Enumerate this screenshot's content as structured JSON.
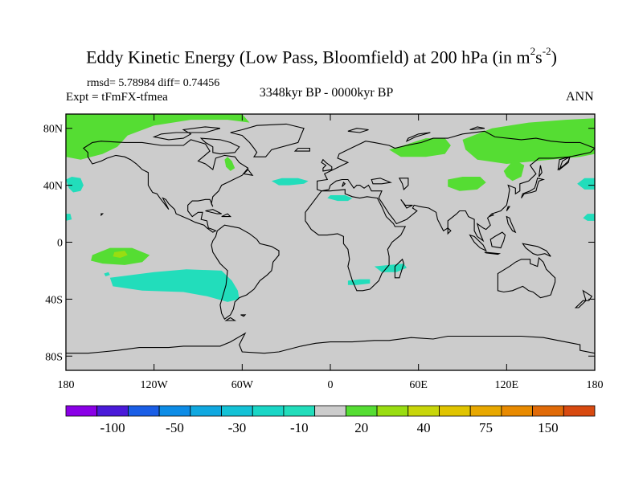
{
  "header": {
    "title_main": "Eddy Kinetic Energy (Low Pass, Bloomfield) at 200 hPa (in m",
    "title_sup1": "2",
    "title_mid": "s",
    "title_sup2": "-2",
    "title_end": ")",
    "stats": "rmsd= 5.78984 diff= 0.74456",
    "expt": "Expt = tFmFX-tfmea",
    "period": "3348kyr BP - 0000kyr BP",
    "season": "ANN"
  },
  "colors": {
    "land_fill": "#cccccc",
    "coastline": "#000000",
    "pos_low": "#55dd33",
    "pos_mid": "#99dd11",
    "neg_low": "#22ddbb"
  },
  "chart_data": {
    "type": "heatmap",
    "title": "Eddy Kinetic Energy (Low Pass, Bloomfield) at 200 hPa (in m2s-2)",
    "subtitle": "3348kyr BP - 0000kyr BP",
    "x_range": [
      -180,
      180
    ],
    "y_range": [
      -90,
      90
    ],
    "x_ticks": [
      {
        "value": -180,
        "label": "180"
      },
      {
        "value": -120,
        "label": "120W"
      },
      {
        "value": -60,
        "label": "60W"
      },
      {
        "value": 0,
        "label": "0"
      },
      {
        "value": 60,
        "label": "60E"
      },
      {
        "value": 120,
        "label": "120E"
      },
      {
        "value": 180,
        "label": "180"
      }
    ],
    "y_ticks": [
      {
        "value": 80,
        "label": "80N"
      },
      {
        "value": 40,
        "label": "40N"
      },
      {
        "value": 0,
        "label": "0"
      },
      {
        "value": -40,
        "label": "40S"
      },
      {
        "value": -80,
        "label": "80S"
      }
    ],
    "colorbar": {
      "colors": [
        "#8a00e6",
        "#4a1ad9",
        "#1a5ee6",
        "#0d8ce6",
        "#10a8e0",
        "#14c2d6",
        "#1ad6c6",
        "#22ddbb",
        "#cccccc",
        "#55dd33",
        "#99dd11",
        "#c8d60a",
        "#e0c400",
        "#e8a800",
        "#e88a00",
        "#e06a08",
        "#d84a10"
      ],
      "labels": [
        {
          "boundary": 1.5,
          "label": "-100"
        },
        {
          "boundary": 3.5,
          "label": "-50"
        },
        {
          "boundary": 5.5,
          "label": "-30"
        },
        {
          "boundary": 7.5,
          "label": "-10"
        },
        {
          "boundary": 9.5,
          "label": "20"
        },
        {
          "boundary": 11.5,
          "label": "40"
        },
        {
          "boundary": 13.5,
          "label": "75"
        },
        {
          "boundary": 15.5,
          "label": "150"
        }
      ]
    },
    "regions": [
      {
        "name": "arctic-north-america",
        "level": "pos_low",
        "polygon": [
          [
            -180,
            90
          ],
          [
            -180,
            60
          ],
          [
            -170,
            58
          ],
          [
            -155,
            62
          ],
          [
            -145,
            67
          ],
          [
            -138,
            75
          ],
          [
            -120,
            82
          ],
          [
            -95,
            86
          ],
          [
            -70,
            86
          ],
          [
            -55,
            84
          ],
          [
            -60,
            90
          ]
        ]
      },
      {
        "name": "hudson-bay-patch",
        "level": "pos_low",
        "polygon": [
          [
            -70,
            60
          ],
          [
            -67,
            57
          ],
          [
            -65,
            52
          ],
          [
            -68,
            50
          ],
          [
            -71,
            53
          ],
          [
            -72,
            58
          ]
        ]
      },
      {
        "name": "north-atlantic-west",
        "level": "neg_low",
        "polygon": [
          [
            -180,
            44
          ],
          [
            -178,
            38
          ],
          [
            -175,
            35
          ],
          [
            -170,
            36
          ],
          [
            -168,
            40
          ],
          [
            -170,
            45
          ],
          [
            -176,
            46
          ]
        ]
      },
      {
        "name": "north-atlantic-east",
        "level": "neg_low",
        "polygon": [
          [
            -40,
            43
          ],
          [
            -35,
            40
          ],
          [
            -28,
            40
          ],
          [
            -18,
            41
          ],
          [
            -15,
            43
          ],
          [
            -22,
            45
          ],
          [
            -33,
            45
          ]
        ]
      },
      {
        "name": "north-africa",
        "level": "neg_low",
        "polygon": [
          [
            -2,
            31
          ],
          [
            5,
            29
          ],
          [
            12,
            29
          ],
          [
            15,
            31
          ],
          [
            10,
            33
          ],
          [
            0,
            33
          ]
        ]
      },
      {
        "name": "south-africa-se",
        "level": "neg_low",
        "polygon": [
          [
            30,
            -17
          ],
          [
            40,
            -16
          ],
          [
            50,
            -15
          ],
          [
            52,
            -18
          ],
          [
            45,
            -21
          ],
          [
            35,
            -21
          ]
        ]
      },
      {
        "name": "south-africa",
        "level": "neg_low",
        "polygon": [
          [
            12,
            -27
          ],
          [
            20,
            -26
          ],
          [
            27,
            -26
          ],
          [
            27,
            -29
          ],
          [
            18,
            -30
          ],
          [
            12,
            -30
          ]
        ]
      },
      {
        "name": "siberia-west",
        "level": "pos_low",
        "polygon": [
          [
            40,
            65
          ],
          [
            50,
            68
          ],
          [
            65,
            73
          ],
          [
            78,
            73
          ],
          [
            82,
            68
          ],
          [
            78,
            62
          ],
          [
            65,
            60
          ],
          [
            48,
            60
          ]
        ]
      },
      {
        "name": "siberia-east",
        "level": "pos_low",
        "polygon": [
          [
            90,
            72
          ],
          [
            110,
            80
          ],
          [
            135,
            84
          ],
          [
            160,
            86
          ],
          [
            180,
            87
          ],
          [
            180,
            62
          ],
          [
            170,
            60
          ],
          [
            150,
            58
          ],
          [
            130,
            56
          ],
          [
            120,
            55
          ],
          [
            100,
            58
          ],
          [
            92,
            65
          ]
        ]
      },
      {
        "name": "central-asia",
        "level": "pos_low",
        "polygon": [
          [
            80,
            44
          ],
          [
            90,
            46
          ],
          [
            102,
            46
          ],
          [
            106,
            42
          ],
          [
            100,
            37
          ],
          [
            88,
            36
          ],
          [
            80,
            39
          ]
        ]
      },
      {
        "name": "korea-japan",
        "level": "pos_low",
        "polygon": [
          [
            118,
            50
          ],
          [
            125,
            58
          ],
          [
            132,
            54
          ],
          [
            130,
            46
          ],
          [
            124,
            43
          ],
          [
            120,
            46
          ]
        ]
      },
      {
        "name": "pacific-east-band",
        "level": "neg_low",
        "polygon": [
          [
            168,
            41
          ],
          [
            173,
            37
          ],
          [
            180,
            37
          ],
          [
            180,
            45
          ],
          [
            173,
            45
          ]
        ]
      },
      {
        "name": "pacific-east-small",
        "level": "neg_low",
        "polygon": [
          [
            172,
            17
          ],
          [
            175,
            15
          ],
          [
            180,
            15
          ],
          [
            180,
            20
          ],
          [
            175,
            20
          ]
        ]
      },
      {
        "name": "pacific-west-small",
        "level": "neg_low",
        "polygon": [
          [
            -180,
            20
          ],
          [
            -180,
            15
          ],
          [
            -176,
            16
          ],
          [
            -177,
            20
          ]
        ]
      },
      {
        "name": "south-pacific",
        "level": "pos_low",
        "polygon": [
          [
            -162,
            -9
          ],
          [
            -150,
            -4
          ],
          [
            -135,
            -4
          ],
          [
            -123,
            -9
          ],
          [
            -128,
            -14
          ],
          [
            -140,
            -16
          ],
          [
            -155,
            -15
          ],
          [
            -163,
            -13
          ]
        ]
      },
      {
        "name": "south-pacific-core",
        "level": "pos_mid",
        "polygon": [
          [
            -147,
            -7
          ],
          [
            -140,
            -6
          ],
          [
            -138,
            -9
          ],
          [
            -143,
            -11
          ],
          [
            -148,
            -10
          ]
        ]
      },
      {
        "name": "southern-ocean",
        "level": "neg_low",
        "polygon": [
          [
            -150,
            -25
          ],
          [
            -135,
            -23
          ],
          [
            -120,
            -21
          ],
          [
            -98,
            -19
          ],
          [
            -74,
            -20
          ],
          [
            -67,
            -27
          ],
          [
            -63,
            -34
          ],
          [
            -62,
            -40
          ],
          [
            -70,
            -42
          ],
          [
            -84,
            -38
          ],
          [
            -100,
            -35
          ],
          [
            -128,
            -34
          ],
          [
            -148,
            -31
          ]
        ]
      },
      {
        "name": "south-pacific-dot",
        "level": "neg_low",
        "polygon": [
          [
            -154,
            -22
          ],
          [
            -151,
            -21
          ],
          [
            -150,
            -23
          ],
          [
            -153,
            -24
          ]
        ]
      }
    ]
  }
}
